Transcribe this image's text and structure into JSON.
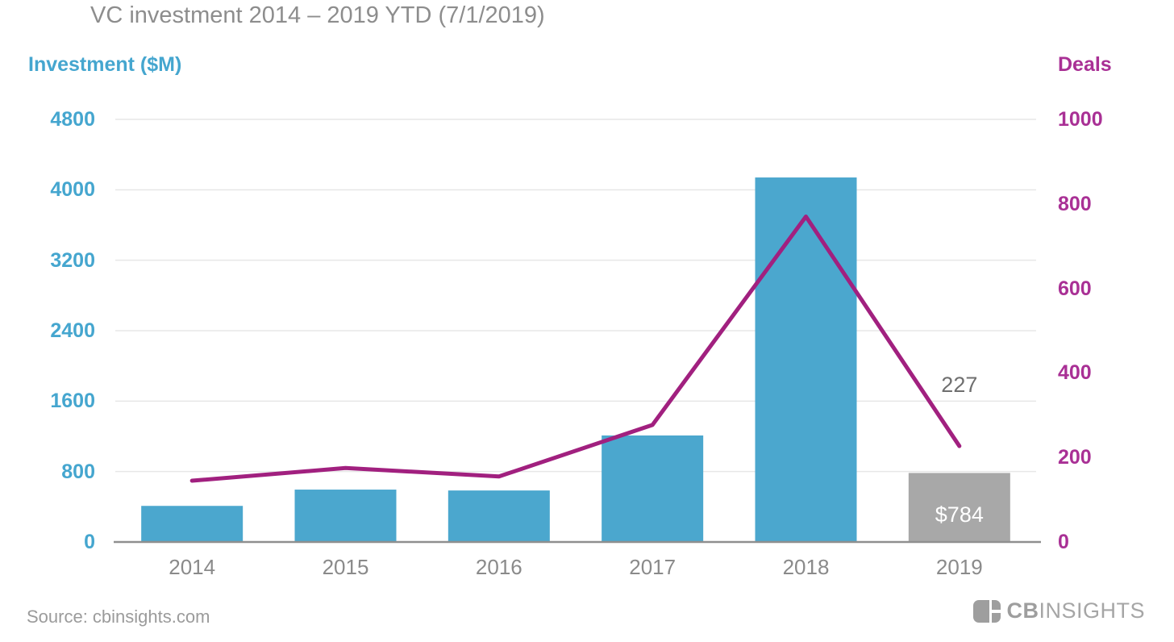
{
  "title": "VC investment 2014 – 2019 YTD (7/1/2019)",
  "source": "Source: cbinsights.com",
  "logo": {
    "bold": "CB",
    "light": "INSIGHTS"
  },
  "colors": {
    "bar_blue": "#4BA7CE",
    "bar_gray": "#A8A8A8",
    "line_magenta": "#A1207F",
    "left_axis_text": "#45A6CF",
    "right_axis_text": "#A93095",
    "gridline": "#E7E7E7",
    "axis_line": "#8F8F8F"
  },
  "chart_data": {
    "type": "bar",
    "subtype": "combo bar + line, dual axis",
    "title": "VC investment 2014 – 2019 YTD (7/1/2019)",
    "categories": [
      "2014",
      "2015",
      "2016",
      "2017",
      "2018",
      "2019"
    ],
    "series": [
      {
        "name": "Investment ($M)",
        "type": "bar",
        "axis": "left",
        "values": [
          410,
          595,
          585,
          1210,
          4140,
          784
        ],
        "colors": [
          "#4BA7CE",
          "#4BA7CE",
          "#4BA7CE",
          "#4BA7CE",
          "#4BA7CE",
          "#A8A8A8"
        ]
      },
      {
        "name": "Deals",
        "type": "line",
        "axis": "right",
        "values": [
          145,
          175,
          155,
          277,
          770,
          227
        ],
        "color": "#A1207F"
      }
    ],
    "left_axis": {
      "label": "Investment ($M)",
      "min": 0,
      "max": 4800,
      "ticks": [
        4800,
        4000,
        3200,
        2400,
        1600,
        800,
        0
      ]
    },
    "right_axis": {
      "label": "Deals",
      "min": 0,
      "max": 1000,
      "ticks": [
        1000,
        800,
        600,
        400,
        200,
        0
      ]
    },
    "annotations": [
      {
        "text": "227",
        "series": "Deals",
        "category": "2019"
      },
      {
        "text": "$784",
        "series": "Investment ($M)",
        "category": "2019"
      }
    ],
    "grid": "horizontal gridlines at left-axis ticks",
    "legend_position": "none (axis titles act as legend)"
  }
}
